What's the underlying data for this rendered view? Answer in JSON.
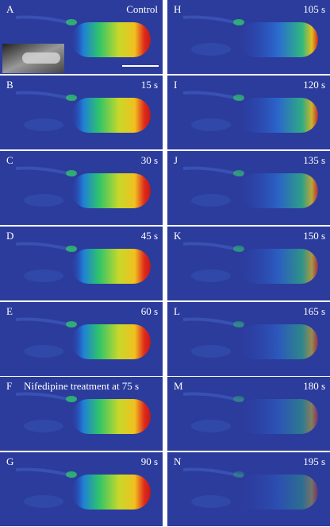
{
  "panels": [
    {
      "letter": "A",
      "label": "Control"
    },
    {
      "letter": "B",
      "label": "15 s"
    },
    {
      "letter": "C",
      "label": "30 s"
    },
    {
      "letter": "D",
      "label": "45 s"
    },
    {
      "letter": "E",
      "label": "60 s"
    },
    {
      "letter": "F",
      "label": "Nifedipine treatment at 75 s"
    },
    {
      "letter": "G",
      "label": "90 s"
    },
    {
      "letter": "H",
      "label": "105 s"
    },
    {
      "letter": "I",
      "label": "120 s"
    },
    {
      "letter": "J",
      "label": "135 s"
    },
    {
      "letter": "K",
      "label": "150 s"
    },
    {
      "letter": "L",
      "label": "165 s"
    },
    {
      "letter": "M",
      "label": "180 s"
    },
    {
      "letter": "N",
      "label": "195 s"
    }
  ]
}
